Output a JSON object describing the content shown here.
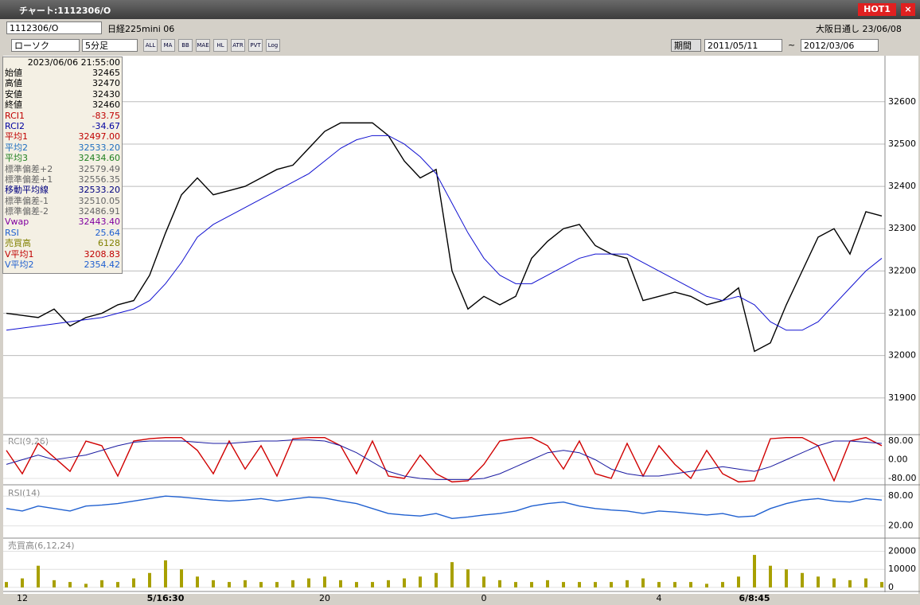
{
  "window": {
    "title": "チャート:1112306/O",
    "hot": "HOT1",
    "close": "×"
  },
  "symbol_bar": {
    "code": "1112306/O",
    "name": "日経225mini 06",
    "market": "大阪日通し 23/06/08"
  },
  "toolbar": {
    "chart_style": "ローソク",
    "interval": "5分足",
    "icons": [
      "ALL",
      "MA",
      "BB",
      "MAE",
      "HL",
      "ATR",
      "PVT",
      "Log"
    ],
    "period_label": "期間",
    "from": "2011/05/11",
    "tilde": "~",
    "to": "2012/03/06"
  },
  "info_panel": {
    "datetime": "2023/06/06 21:55:00",
    "rows": [
      [
        "始値",
        "32465"
      ],
      [
        "高値",
        "32470"
      ],
      [
        "安値",
        "32430"
      ],
      [
        "終値",
        "32460"
      ],
      [
        "RCI1",
        "-83.75"
      ],
      [
        "RCI2",
        "-34.67"
      ],
      [
        "平均1",
        "32497.00"
      ],
      [
        "平均2",
        "32533.20"
      ],
      [
        "平均3",
        "32434.60"
      ],
      [
        "標準偏差+2",
        "32579.49"
      ],
      [
        "標準偏差+1",
        "32556.35"
      ],
      [
        "移動平均線",
        "32533.20"
      ],
      [
        "標準偏差-1",
        "32510.05"
      ],
      [
        "標準偏差-2",
        "32486.91"
      ],
      [
        "Vwap",
        "32443.40"
      ],
      [
        "RSI",
        "25.64"
      ],
      [
        "売買高",
        "6128"
      ],
      [
        "V平均1",
        "3208.83"
      ],
      [
        "V平均2",
        "2354.42"
      ]
    ]
  },
  "chart_data": [
    {
      "type": "line",
      "categories": [
        null,
        "12",
        null,
        null,
        null,
        null,
        null,
        null,
        null,
        null,
        "5/16:30",
        null,
        null,
        null,
        null,
        null,
        null,
        null,
        null,
        null,
        "20",
        null,
        null,
        null,
        null,
        null,
        null,
        null,
        null,
        null,
        "0",
        null,
        null,
        null,
        null,
        null,
        null,
        null,
        null,
        null,
        null,
        "4",
        null,
        null,
        null,
        null,
        null,
        "6/8:45",
        null,
        null,
        null,
        null,
        null,
        null,
        null,
        null
      ],
      "series": [
        {
          "color": "#000000",
          "values": [
            32100,
            32095,
            32090,
            32110,
            32070,
            32090,
            32100,
            32120,
            32130,
            32190,
            32290,
            32380,
            32420,
            32380,
            32390,
            32400,
            32420,
            32440,
            32450,
            32490,
            32530,
            32550,
            32550,
            32550,
            32520,
            32460,
            32420,
            32440,
            32200,
            32110,
            32140,
            32120,
            32140,
            32230,
            32270,
            32300,
            32310,
            32260,
            32240,
            32230,
            32130,
            32140,
            32150,
            32140,
            32120,
            32130,
            32160,
            32010,
            32030,
            32120,
            32200,
            32280,
            32300,
            32240,
            32340,
            32330
          ]
        },
        {
          "color": "#1010d0",
          "values": [
            32060,
            32065,
            32070,
            32075,
            32080,
            32085,
            32090,
            32100,
            32110,
            32130,
            32170,
            32220,
            32280,
            32310,
            32330,
            32350,
            32370,
            32390,
            32410,
            32430,
            32460,
            32490,
            32510,
            32520,
            32520,
            32500,
            32470,
            32430,
            32360,
            32290,
            32230,
            32190,
            32170,
            32170,
            32190,
            32210,
            32230,
            32240,
            32240,
            32240,
            32220,
            32200,
            32180,
            32160,
            32140,
            32130,
            32140,
            32120,
            32080,
            32060,
            32060,
            32080,
            32120,
            32160,
            32200,
            32230
          ]
        }
      ],
      "ylim": [
        31815,
        32705
      ],
      "yticks": [
        31900,
        32000,
        32100,
        32200,
        32300,
        32400,
        32500,
        32600
      ],
      "grid": true
    },
    {
      "type": "line",
      "title": "RCI(9,26)",
      "series": [
        {
          "color": "#d00000",
          "values": [
            40,
            -60,
            70,
            10,
            -50,
            80,
            60,
            -70,
            80,
            90,
            95,
            95,
            40,
            -60,
            80,
            -40,
            60,
            -70,
            90,
            95,
            95,
            60,
            -60,
            80,
            -70,
            -80,
            20,
            -60,
            -95,
            -90,
            -20,
            80,
            90,
            95,
            60,
            -40,
            80,
            -60,
            -80,
            70,
            -70,
            60,
            -20,
            -80,
            40,
            -60,
            -95,
            -90,
            90,
            95,
            95,
            60,
            -90,
            80,
            95,
            60
          ]
        },
        {
          "color": "#1818a0",
          "values": [
            -20,
            0,
            20,
            0,
            10,
            20,
            40,
            60,
            75,
            80,
            80,
            80,
            75,
            70,
            70,
            75,
            80,
            80,
            85,
            85,
            80,
            60,
            30,
            -10,
            -50,
            -70,
            -80,
            -85,
            -85,
            -85,
            -80,
            -60,
            -30,
            0,
            30,
            40,
            30,
            0,
            -40,
            -60,
            -70,
            -70,
            -60,
            -50,
            -40,
            -30,
            -40,
            -50,
            -30,
            0,
            30,
            60,
            80,
            80,
            75,
            70
          ]
        }
      ],
      "ylim": [
        -104,
        104
      ],
      "yticks": [
        {
          "value": 80,
          "label": "80.00"
        },
        {
          "value": 0,
          "label": "0.00"
        },
        {
          "value": -80,
          "label": "-80.00"
        }
      ]
    },
    {
      "type": "line",
      "title": "RSI(14)",
      "series": [
        {
          "color": "#2060d0",
          "values": [
            55,
            50,
            60,
            55,
            50,
            60,
            62,
            65,
            70,
            75,
            80,
            78,
            75,
            72,
            70,
            72,
            75,
            70,
            74,
            78,
            76,
            70,
            65,
            55,
            45,
            42,
            40,
            45,
            35,
            38,
            42,
            45,
            50,
            60,
            65,
            68,
            60,
            55,
            52,
            50,
            45,
            50,
            48,
            45,
            42,
            45,
            38,
            40,
            55,
            65,
            72,
            75,
            70,
            68,
            75,
            72
          ]
        }
      ],
      "ylim": [
        -3,
        98
      ],
      "yticks": [
        {
          "value": 80,
          "label": "80.00"
        },
        {
          "value": 20,
          "label": "20.00"
        }
      ]
    },
    {
      "type": "bar",
      "title": "売買高(6,12,24)",
      "color": "#a8a000",
      "values": [
        3000,
        5000,
        12000,
        4000,
        3000,
        2000,
        4000,
        3000,
        5000,
        8000,
        15000,
        10000,
        6000,
        4000,
        3000,
        4000,
        3000,
        3000,
        4000,
        5000,
        6000,
        4000,
        3000,
        3000,
        4000,
        5000,
        6000,
        8000,
        14000,
        10000,
        6000,
        4000,
        3000,
        3000,
        4000,
        3000,
        3000,
        3000,
        3000,
        4000,
        5000,
        3000,
        3000,
        3000,
        2000,
        3000,
        6000,
        18000,
        12000,
        10000,
        8000,
        6000,
        5000,
        4000,
        5000,
        3000
      ],
      "ylim": [
        -1800,
        26400
      ],
      "yticks": [
        0,
        10000,
        20000
      ]
    }
  ]
}
